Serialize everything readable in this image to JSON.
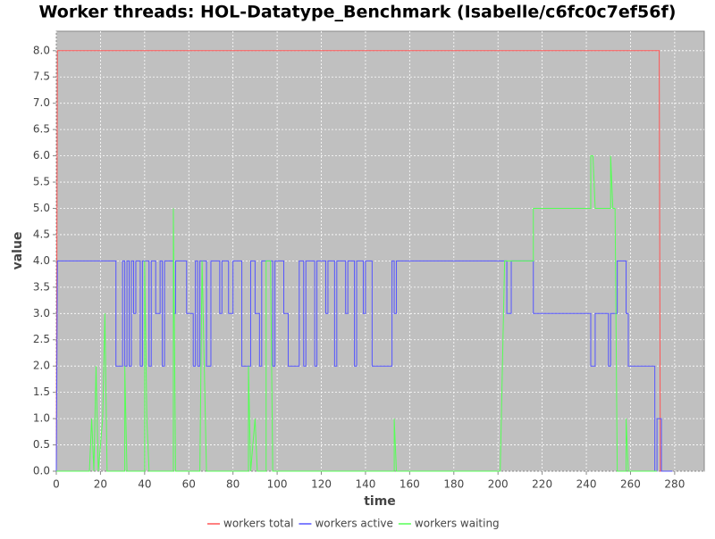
{
  "chart_data": {
    "type": "line",
    "title": "Worker threads: HOL-Datatype_Benchmark (Isabelle/c6fc0c7ef56f)",
    "x_label": "time",
    "y_label": "value",
    "xlim": [
      0,
      293.4
    ],
    "ylim": [
      0,
      8.37
    ],
    "xticks": [
      0,
      20,
      40,
      60,
      80,
      100,
      120,
      140,
      160,
      180,
      200,
      220,
      240,
      260,
      280
    ],
    "yticks": [
      {
        "value": 0,
        "label": "0.0"
      },
      {
        "value": 0.5,
        "label": "0.5"
      },
      {
        "value": 1,
        "label": "1.0"
      },
      {
        "value": 1.5,
        "label": "1.5"
      },
      {
        "value": 2,
        "label": "2.0"
      },
      {
        "value": 2.5,
        "label": "2.5"
      },
      {
        "value": 3,
        "label": "3.0"
      },
      {
        "value": 3.5,
        "label": "3.5"
      },
      {
        "value": 4,
        "label": "4.0"
      },
      {
        "value": 4.5,
        "label": "4.5"
      },
      {
        "value": 5,
        "label": "5.0"
      },
      {
        "value": 5.5,
        "label": "5.5"
      },
      {
        "value": 6,
        "label": "6.0"
      },
      {
        "value": 6.5,
        "label": "6.5"
      },
      {
        "value": 7,
        "label": "7.0"
      },
      {
        "value": 7.5,
        "label": "7.5"
      },
      {
        "value": 8,
        "label": "8.0"
      }
    ],
    "grid": true,
    "legend": "bottom",
    "background": "#c0c0c0",
    "series": [
      {
        "name": "workers total",
        "color": "#ff5555",
        "x": [
          0,
          0.5,
          273,
          273.5,
          279
        ],
        "values": [
          0,
          8,
          8,
          0,
          0
        ]
      },
      {
        "name": "workers active",
        "color": "#5555ff",
        "x": [
          0,
          0.5,
          27,
          27,
          30,
          30,
          31,
          31,
          32,
          32,
          33,
          33,
          34,
          34,
          35,
          35,
          36,
          36,
          38,
          38,
          39,
          39,
          42,
          42,
          43,
          43,
          45,
          45,
          47,
          47,
          48,
          48,
          49,
          49,
          53,
          53,
          54,
          54,
          59,
          59,
          62,
          62,
          63,
          63,
          64,
          64,
          65,
          65,
          68,
          68,
          70,
          70,
          74,
          74,
          75,
          75,
          78,
          78,
          80,
          80,
          84,
          84,
          88,
          88,
          90,
          90,
          92,
          92,
          93,
          93,
          98,
          98,
          99,
          99,
          103,
          103,
          105,
          105,
          110,
          110,
          112,
          112,
          113,
          113,
          117,
          117,
          118,
          118,
          122,
          122,
          123,
          123,
          126,
          126,
          127,
          127,
          131,
          131,
          132,
          132,
          135,
          135,
          136,
          136,
          139,
          139,
          140,
          140,
          143,
          143,
          152,
          152,
          153,
          153,
          154,
          154,
          204,
          204,
          206,
          206,
          216,
          216,
          242,
          242,
          244,
          244,
          250,
          250,
          251,
          251,
          254,
          254,
          258,
          258,
          259,
          259,
          271,
          271,
          272,
          272,
          274,
          274,
          279
        ],
        "values": [
          0,
          4,
          4,
          2,
          2,
          4,
          4,
          2,
          2,
          4,
          4,
          2,
          2,
          4,
          4,
          3,
          3,
          4,
          4,
          2,
          2,
          4,
          4,
          2,
          2,
          4,
          4,
          3,
          3,
          4,
          4,
          2,
          2,
          4,
          4,
          3,
          3,
          4,
          4,
          3,
          3,
          2,
          2,
          4,
          4,
          2,
          2,
          4,
          4,
          2,
          2,
          4,
          4,
          3,
          3,
          4,
          4,
          3,
          3,
          4,
          4,
          2,
          2,
          4,
          4,
          3,
          3,
          2,
          2,
          4,
          4,
          2,
          2,
          4,
          4,
          3,
          3,
          2,
          2,
          4,
          4,
          2,
          2,
          4,
          4,
          2,
          2,
          4,
          4,
          3,
          3,
          4,
          4,
          2,
          2,
          4,
          4,
          3,
          3,
          4,
          4,
          2,
          2,
          4,
          4,
          3,
          3,
          4,
          4,
          2,
          2,
          4,
          4,
          3,
          3,
          4,
          4,
          3,
          3,
          4,
          4,
          3,
          3,
          2,
          2,
          3,
          3,
          2,
          2,
          3,
          3,
          4,
          4,
          3,
          3,
          2,
          2,
          0,
          0,
          1,
          1,
          0,
          0
        ]
      },
      {
        "name": "workers waiting",
        "color": "#55ff55",
        "x": [
          0,
          15,
          16,
          17,
          18,
          19,
          21,
          22,
          23,
          31,
          31,
          32,
          40,
          40,
          41,
          42,
          53,
          53,
          54,
          65,
          66,
          68,
          87,
          87,
          88,
          90,
          91,
          95,
          95,
          97,
          98,
          153,
          153,
          154,
          201,
          203,
          216,
          216,
          242,
          242,
          243,
          244,
          251,
          251,
          252,
          253,
          254,
          258,
          258,
          259,
          272
        ],
        "values": [
          0,
          0,
          1,
          0,
          2,
          0,
          1,
          3,
          0,
          0,
          2,
          0,
          0,
          4,
          1,
          0,
          0,
          5,
          0,
          0,
          4,
          0,
          0,
          2,
          0,
          1,
          0,
          0,
          4,
          4,
          0,
          0,
          1,
          0,
          0,
          4,
          4,
          5,
          5,
          6,
          6,
          5,
          5,
          6,
          5,
          5,
          0,
          0,
          1,
          0,
          0
        ]
      }
    ]
  }
}
